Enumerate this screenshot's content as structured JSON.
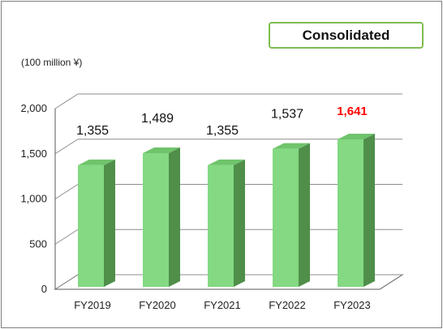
{
  "header": {
    "badge_label": "Consolidated",
    "unit_label": "(100 million ¥)"
  },
  "chart_data": {
    "type": "bar",
    "categories": [
      "FY2019",
      "FY2020",
      "FY2021",
      "FY2022",
      "FY2023"
    ],
    "values": [
      1355,
      1489,
      1355,
      1537,
      1641
    ],
    "value_labels": [
      "1,355",
      "1,489",
      "1,355",
      "1,537",
      "1,641"
    ],
    "y_ticks": [
      0,
      500,
      1000,
      1500,
      2000
    ],
    "y_tick_labels": [
      "0",
      "500",
      "1,000",
      "1,500",
      "2,000"
    ],
    "ylim": [
      0,
      2000
    ],
    "grid": true,
    "three_d": true,
    "title": "",
    "xlabel": "",
    "ylabel": "",
    "colors": {
      "bar_front": "#84d982",
      "bar_side": "#4f8f4a",
      "bar_top": "#6fc46b",
      "highlight_label": "#ff0000",
      "normal_label": "#111111",
      "grid": "#8c8c8c"
    },
    "highlight_index": 4
  }
}
